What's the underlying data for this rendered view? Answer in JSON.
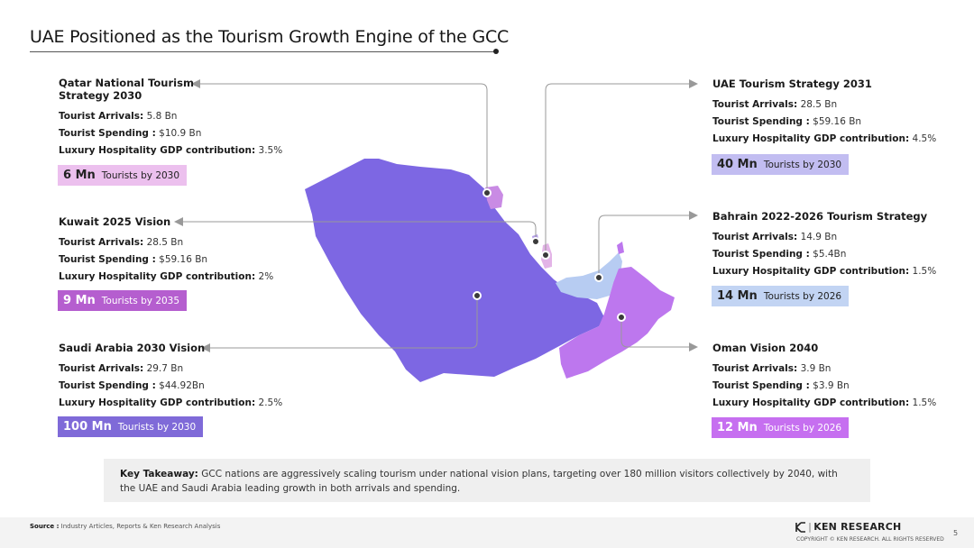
{
  "title": "UAE Positioned as the Tourism Growth Engine of the GCC",
  "colors": {
    "saudi": "#7d67e3",
    "oman": "#bd77ee",
    "uae": "#b7ccf2",
    "qatar": "#e3b4e7",
    "kuwait": "#c98be4",
    "bahrain": "#b49ee8",
    "badge_saudi": "#7f6ad8",
    "badge_kuwait": "#b55ecf",
    "badge_qatar": "#ecc0ee",
    "badge_uae": "#c2bdf1",
    "badge_bahrain": "#c2d4f3",
    "badge_oman": "#c66ff0"
  },
  "labels": {
    "arrivals": "Tourist Arrivals:",
    "spending": "Tourist Spending :",
    "gdp": "Luxury Hospitality GDP contribution:"
  },
  "countries": {
    "qatar": {
      "heading": "Qatar National Tourism Strategy 2030",
      "arrivals": "5.8 Bn",
      "spending": "$10.9 Bn",
      "gdp": "3.5%",
      "target_num": "6 Mn",
      "target_label": "Tourists by 2030"
    },
    "kuwait": {
      "heading": "Kuwait 2025 Vision",
      "arrivals": "28.5 Bn",
      "spending": "$59.16 Bn",
      "gdp": "2%",
      "target_num": "9 Mn",
      "target_label": "Tourists by 2035"
    },
    "saudi": {
      "heading": "Saudi Arabia 2030 Vision",
      "arrivals": "29.7 Bn",
      "spending": "$44.92Bn",
      "gdp": "2.5%",
      "target_num": "100 Mn",
      "target_label": "Tourists by 2030"
    },
    "uae": {
      "heading": "UAE Tourism Strategy 2031",
      "arrivals": "28.5 Bn",
      "spending": "$59.16 Bn",
      "gdp": "4.5%",
      "target_num": "40 Mn",
      "target_label": "Tourists by 2030"
    },
    "bahrain": {
      "heading": "Bahrain 2022-2026 Tourism Strategy",
      "arrivals": "14.9 Bn",
      "spending": "$5.4Bn",
      "gdp": "1.5%",
      "target_num": "14 Mn",
      "target_label": "Tourists by 2026"
    },
    "oman": {
      "heading": "Oman Vision 2040",
      "arrivals": "3.9 Bn",
      "spending": "$3.9 Bn",
      "gdp": "1.5%",
      "target_num": "12 Mn",
      "target_label": "Tourists by 2026"
    }
  },
  "takeaway": {
    "label": "Key Takeaway:",
    "text": "GCC nations are aggressively scaling tourism under national vision plans, targeting over 180 million visitors collectively by 2040, with the UAE and Saudi Arabia leading growth in both arrivals and spending."
  },
  "footer": {
    "source_label": "Source :",
    "source_text": "Industry Articles, Reports & Ken Research Analysis",
    "logo_text": "KEN RESEARCH",
    "copyright": "COPYRIGHT © KEN RESEARCH. ALL RIGHTS RESERVED",
    "page_number": "5"
  }
}
